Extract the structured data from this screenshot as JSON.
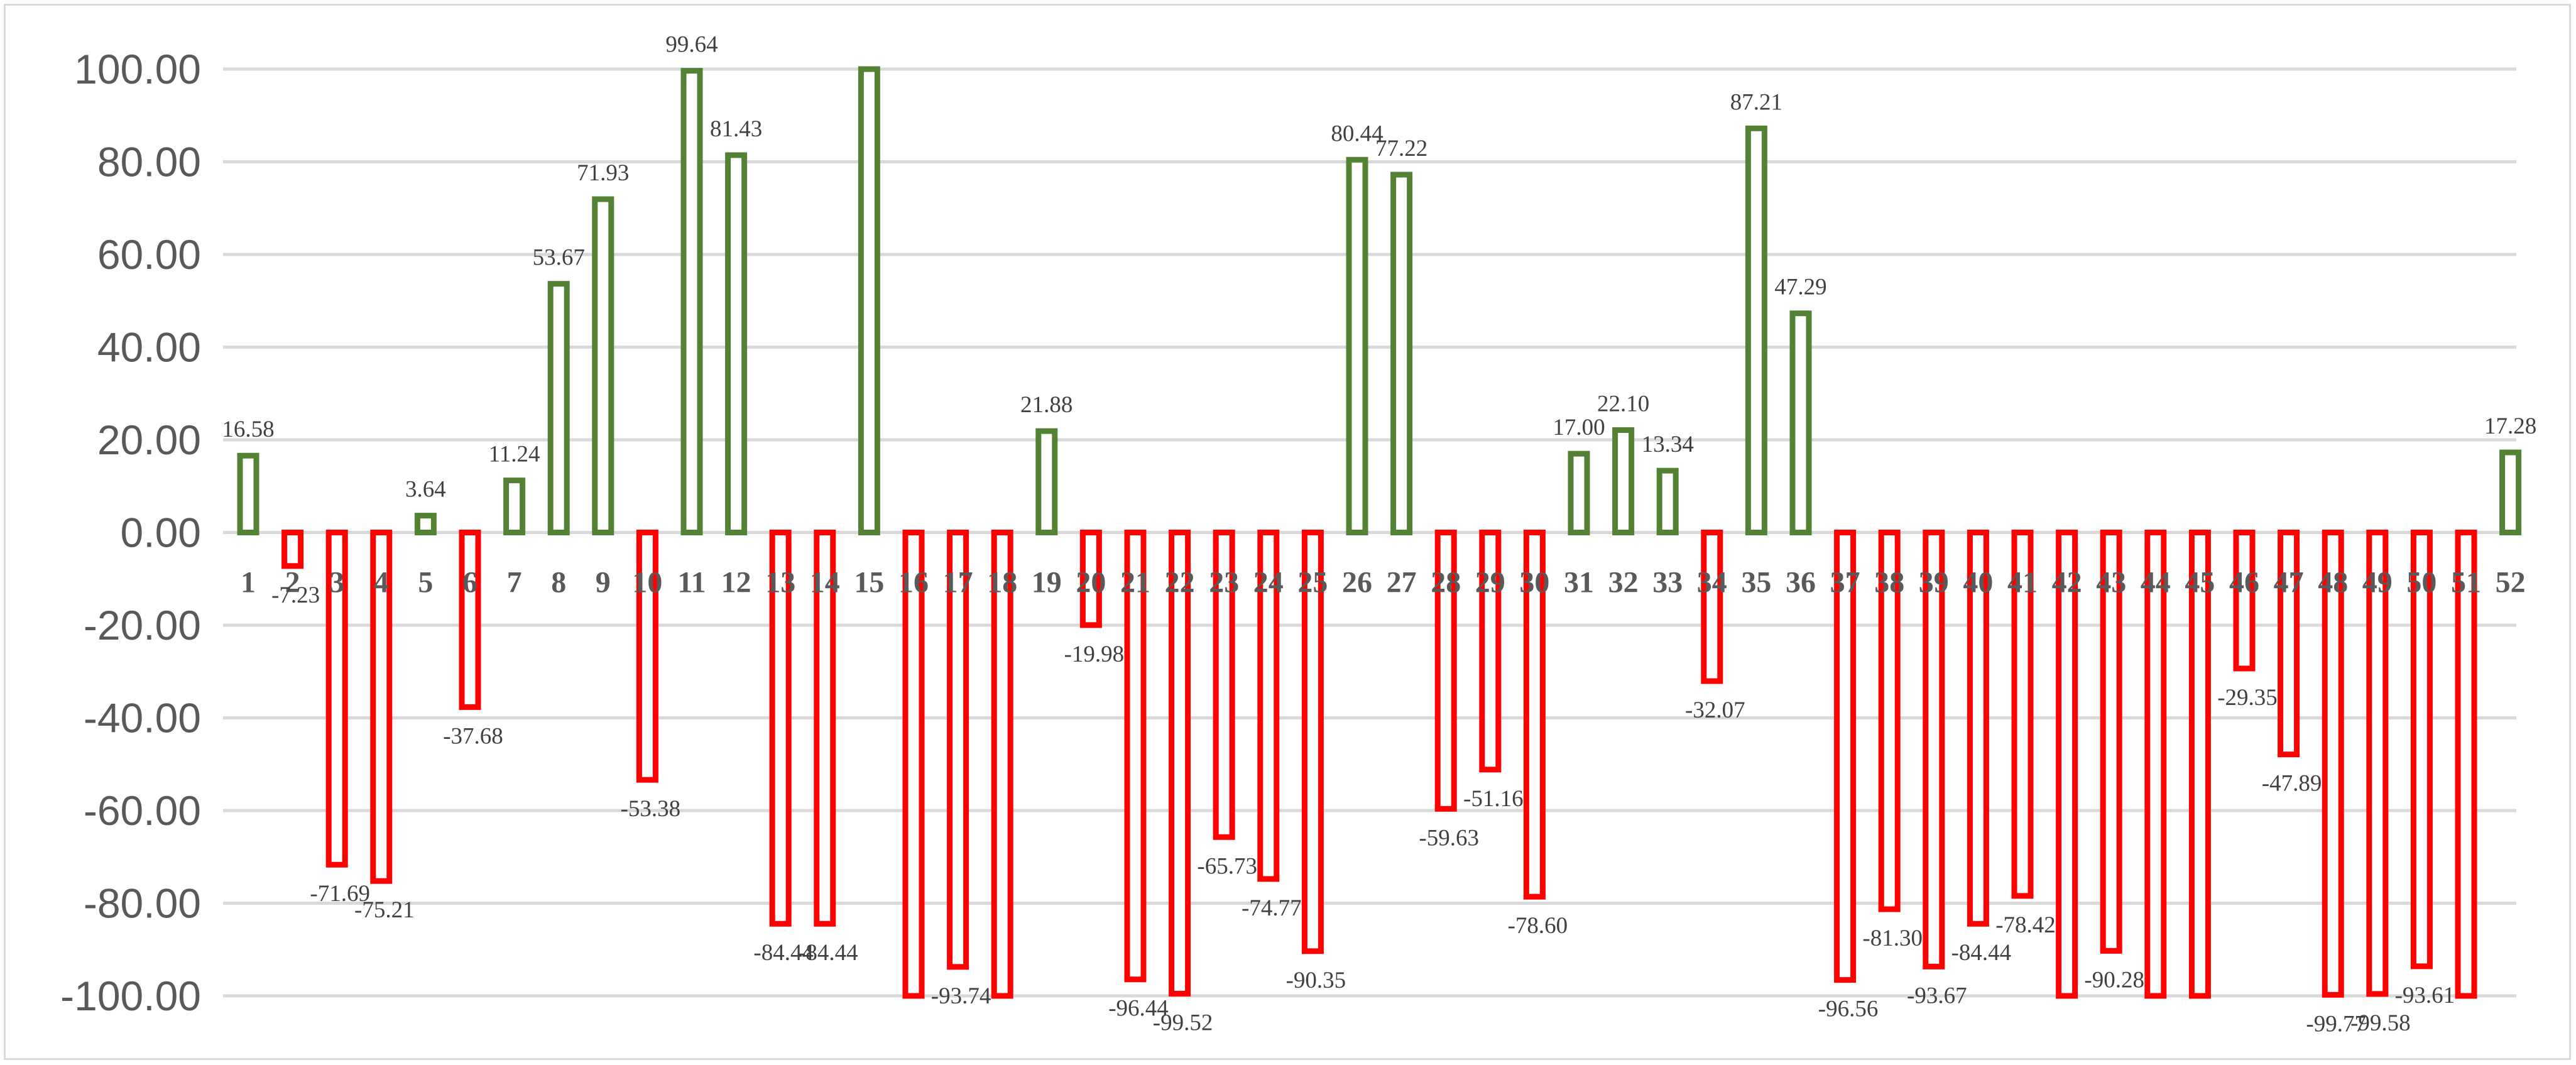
{
  "chart_data": {
    "type": "bar",
    "title": "",
    "xlabel": "",
    "ylabel": "",
    "ylim": [
      -100,
      100
    ],
    "yticks": [
      "100.00",
      "80.00",
      "60.00",
      "40.00",
      "20.00",
      "0.00",
      "-20.00",
      "-40.00",
      "-60.00",
      "-80.00",
      "-100.00"
    ],
    "grid": true,
    "legend": "none",
    "colors": {
      "positive": "#548235",
      "negative": "#ff0000",
      "grid": "#d9d9d9"
    },
    "categories": [
      "1",
      "2",
      "3",
      "4",
      "5",
      "6",
      "7",
      "8",
      "9",
      "10",
      "11",
      "12",
      "13",
      "14",
      "15",
      "16",
      "17",
      "18",
      "19",
      "20",
      "21",
      "22",
      "23",
      "24",
      "25",
      "26",
      "27",
      "28",
      "29",
      "30",
      "31",
      "32",
      "33",
      "34",
      "35",
      "36",
      "37",
      "38",
      "39",
      "40",
      "41",
      "42",
      "43",
      "44",
      "45",
      "46",
      "47",
      "48",
      "49",
      "50",
      "51",
      "52"
    ],
    "values": [
      16.58,
      -7.23,
      -71.69,
      -75.21,
      3.64,
      -37.68,
      11.24,
      53.67,
      71.93,
      -53.38,
      99.64,
      81.43,
      -84.44,
      -84.44,
      100,
      -100,
      -93.74,
      -100,
      21.88,
      -19.98,
      -96.44,
      -99.52,
      -65.73,
      -74.77,
      -90.35,
      80.44,
      77.22,
      -59.63,
      -51.16,
      -78.6,
      17.0,
      22.1,
      13.34,
      -32.07,
      87.21,
      47.29,
      -96.56,
      -81.3,
      -93.67,
      -84.44,
      -78.42,
      -100,
      -90.28,
      -100,
      -100,
      -29.35,
      -47.89,
      -99.77,
      -99.58,
      -93.61,
      -100,
      17.28
    ],
    "data_labels": [
      "16.58",
      "-7.23",
      "-71.69",
      "-75.21",
      "3.64",
      "-37.68",
      "11.24",
      "53.67",
      "71.93",
      "-53.38",
      "99.64",
      "81.43",
      "-84.44",
      "-84.44",
      "",
      "",
      "-93.74",
      "",
      "21.88",
      "-19.98",
      "-96.44",
      "-99.52",
      "-65.73",
      "-74.77",
      "-90.35",
      "80.44",
      "77.22",
      "-59.63",
      "-51.16",
      "-78.60",
      "17.00",
      "22.10",
      "13.34",
      "-32.07",
      "87.21",
      "47.29",
      "-96.56",
      "-81.30",
      "-93.67",
      "-84.44",
      "-78.42",
      "",
      "-90.28",
      "",
      "",
      "-29.35",
      "-47.89",
      "-99.77",
      "-99.58",
      "-93.61",
      "",
      "17.28"
    ]
  }
}
